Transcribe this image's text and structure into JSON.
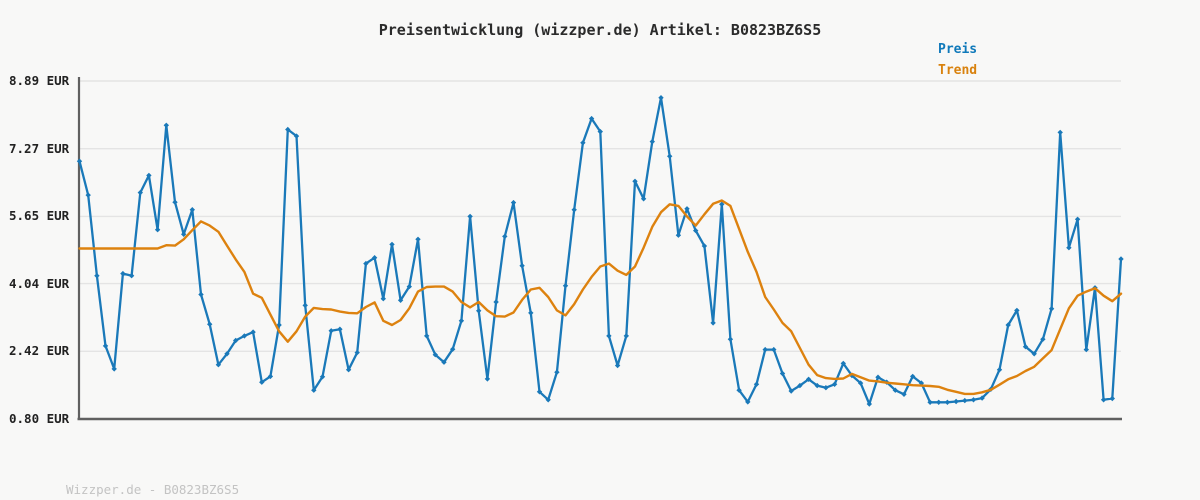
{
  "title": "Preisentwicklung (wizzper.de) Artikel: B0823BZ6S5",
  "footer": "Wizzper.de - B0823BZ6S5",
  "legend": [
    {
      "label": "Preis",
      "color": "#0f79ba"
    },
    {
      "label": "Trend",
      "color": "#d9820e"
    }
  ],
  "y_axis": {
    "labels": [
      "8.89 EUR",
      "7.27 EUR",
      "5.65 EUR",
      "4.04 EUR",
      "2.42 EUR",
      "0.80 EUR"
    ],
    "values": [
      8.89,
      7.27,
      5.65,
      4.04,
      2.42,
      0.8
    ]
  },
  "colors": {
    "background": "#f8f8f7",
    "gridline": "#e4e4e4",
    "axis": "#606060",
    "preis_line": "#1a79b9",
    "trend_line": "#dd820f"
  },
  "chart_data": {
    "type": "line",
    "title": "Preisentwicklung (wizzper.de) Artikel: B0823BZ6S5",
    "ylabel": "EUR",
    "ylim": [
      0.8,
      8.89
    ],
    "ytick_values": [
      8.89,
      7.27,
      5.65,
      4.04,
      2.42,
      0.8
    ],
    "grid": true,
    "x_axis_tick_labels_visible": false,
    "legend_position": "top-right",
    "series": [
      {
        "name": "Preis",
        "color": "#1a79b9",
        "marker": "diamond",
        "values": [
          6.97,
          6.16,
          4.23,
          2.55,
          2.0,
          4.28,
          4.23,
          6.22,
          6.63,
          5.33,
          7.83,
          5.99,
          5.22,
          5.81,
          3.78,
          3.07,
          2.1,
          2.36,
          2.68,
          2.79,
          2.88,
          1.68,
          1.82,
          3.05,
          7.73,
          7.57,
          3.52,
          1.49,
          1.81,
          2.91,
          2.95,
          1.98,
          2.39,
          4.52,
          4.66,
          3.68,
          4.98,
          3.64,
          3.97,
          5.1,
          2.79,
          2.34,
          2.16,
          2.47,
          3.15,
          5.65,
          3.39,
          1.76,
          3.6,
          5.17,
          5.98,
          4.47,
          3.34,
          1.45,
          1.26,
          1.92,
          3.99,
          5.81,
          7.41,
          7.99,
          7.68,
          2.79,
          2.08,
          2.79,
          6.49,
          6.07,
          7.44,
          8.49,
          7.09,
          5.2,
          5.83,
          5.31,
          4.94,
          3.1,
          5.94,
          2.71,
          1.49,
          1.21,
          1.63,
          2.46,
          2.46,
          1.89,
          1.47,
          1.6,
          1.75,
          1.6,
          1.55,
          1.63,
          2.13,
          1.84,
          1.66,
          1.16,
          1.8,
          1.68,
          1.49,
          1.39,
          1.82,
          1.66,
          1.2,
          1.2,
          1.2,
          1.22,
          1.24,
          1.26,
          1.3,
          1.51,
          1.98,
          3.05,
          3.4,
          2.53,
          2.36,
          2.71,
          3.44,
          7.66,
          4.9,
          5.58,
          2.46,
          3.94,
          1.26,
          1.29,
          4.63
        ]
      },
      {
        "name": "Trend",
        "color": "#dd820f",
        "marker": "none",
        "values": [
          4.88,
          4.88,
          4.88,
          4.88,
          4.88,
          4.88,
          4.88,
          4.88,
          4.88,
          4.88,
          4.96,
          4.95,
          5.1,
          5.32,
          5.53,
          5.43,
          5.28,
          4.95,
          4.62,
          4.32,
          3.8,
          3.7,
          3.3,
          2.9,
          2.65,
          2.9,
          3.25,
          3.46,
          3.43,
          3.42,
          3.37,
          3.34,
          3.33,
          3.48,
          3.59,
          3.15,
          3.05,
          3.17,
          3.45,
          3.85,
          3.96,
          3.97,
          3.97,
          3.85,
          3.6,
          3.47,
          3.6,
          3.4,
          3.26,
          3.25,
          3.35,
          3.65,
          3.9,
          3.94,
          3.72,
          3.4,
          3.28,
          3.55,
          3.9,
          4.2,
          4.45,
          4.52,
          4.35,
          4.25,
          4.45,
          4.9,
          5.4,
          5.75,
          5.94,
          5.9,
          5.65,
          5.43,
          5.7,
          5.95,
          6.03,
          5.9,
          5.35,
          4.8,
          4.32,
          3.72,
          3.42,
          3.1,
          2.9,
          2.5,
          2.1,
          1.85,
          1.78,
          1.76,
          1.77,
          1.88,
          1.8,
          1.72,
          1.7,
          1.67,
          1.65,
          1.63,
          1.61,
          1.6,
          1.59,
          1.57,
          1.5,
          1.45,
          1.4,
          1.4,
          1.44,
          1.5,
          1.62,
          1.75,
          1.83,
          1.95,
          2.05,
          2.25,
          2.45,
          2.95,
          3.45,
          3.75,
          3.85,
          3.93,
          3.75,
          3.62,
          3.8
        ]
      }
    ]
  }
}
